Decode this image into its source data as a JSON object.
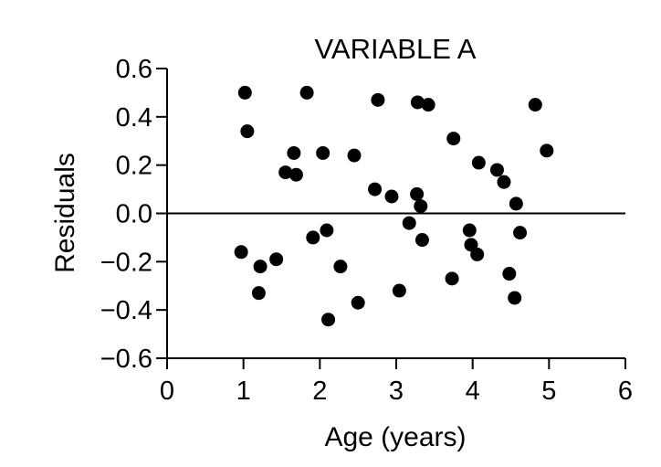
{
  "chart_data": {
    "type": "scatter",
    "title": "VARIABLE A",
    "xlabel": "Age (years)",
    "ylabel": "Residuals",
    "xlim": [
      0,
      6
    ],
    "ylim": [
      -0.6,
      0.6
    ],
    "x_ticks": [
      0,
      1,
      2,
      3,
      4,
      5,
      6
    ],
    "x_tick_labels": [
      "0",
      "1",
      "2",
      "3",
      "4",
      "5",
      "6"
    ],
    "y_ticks": [
      0.6,
      0.4,
      0.2,
      0.0,
      -0.2,
      -0.4,
      -0.6
    ],
    "y_tick_labels": [
      "0.6",
      "0.4",
      "0.2",
      "0.0",
      "−0.2",
      "−0.4",
      "−0.6"
    ],
    "reference_line_y": 0,
    "grid": false,
    "legend": "none",
    "marker_color": "#000000",
    "points": [
      {
        "x": 0.97,
        "y": -0.16
      },
      {
        "x": 1.02,
        "y": 0.5
      },
      {
        "x": 1.05,
        "y": 0.34
      },
      {
        "x": 1.2,
        "y": -0.33
      },
      {
        "x": 1.22,
        "y": -0.22
      },
      {
        "x": 1.43,
        "y": -0.19
      },
      {
        "x": 1.55,
        "y": 0.17
      },
      {
        "x": 1.66,
        "y": 0.25
      },
      {
        "x": 1.69,
        "y": 0.16
      },
      {
        "x": 1.83,
        "y": 0.5
      },
      {
        "x": 1.91,
        "y": -0.1
      },
      {
        "x": 2.04,
        "y": 0.25
      },
      {
        "x": 2.09,
        "y": -0.07
      },
      {
        "x": 2.11,
        "y": -0.44
      },
      {
        "x": 2.27,
        "y": -0.22
      },
      {
        "x": 2.45,
        "y": 0.24
      },
      {
        "x": 2.5,
        "y": -0.37
      },
      {
        "x": 2.72,
        "y": 0.1
      },
      {
        "x": 2.76,
        "y": 0.47
      },
      {
        "x": 2.94,
        "y": 0.07
      },
      {
        "x": 3.04,
        "y": -0.32
      },
      {
        "x": 3.17,
        "y": -0.04
      },
      {
        "x": 3.27,
        "y": 0.08
      },
      {
        "x": 3.28,
        "y": 0.46
      },
      {
        "x": 3.32,
        "y": 0.03
      },
      {
        "x": 3.34,
        "y": -0.11
      },
      {
        "x": 3.42,
        "y": 0.45
      },
      {
        "x": 3.73,
        "y": -0.27
      },
      {
        "x": 3.75,
        "y": 0.31
      },
      {
        "x": 3.96,
        "y": -0.07
      },
      {
        "x": 3.98,
        "y": -0.13
      },
      {
        "x": 4.06,
        "y": -0.17
      },
      {
        "x": 4.08,
        "y": 0.21
      },
      {
        "x": 4.32,
        "y": 0.18
      },
      {
        "x": 4.41,
        "y": 0.13
      },
      {
        "x": 4.48,
        "y": -0.25
      },
      {
        "x": 4.55,
        "y": -0.35
      },
      {
        "x": 4.57,
        "y": 0.04
      },
      {
        "x": 4.62,
        "y": -0.08
      },
      {
        "x": 4.82,
        "y": 0.45
      },
      {
        "x": 4.97,
        "y": 0.26
      }
    ]
  }
}
